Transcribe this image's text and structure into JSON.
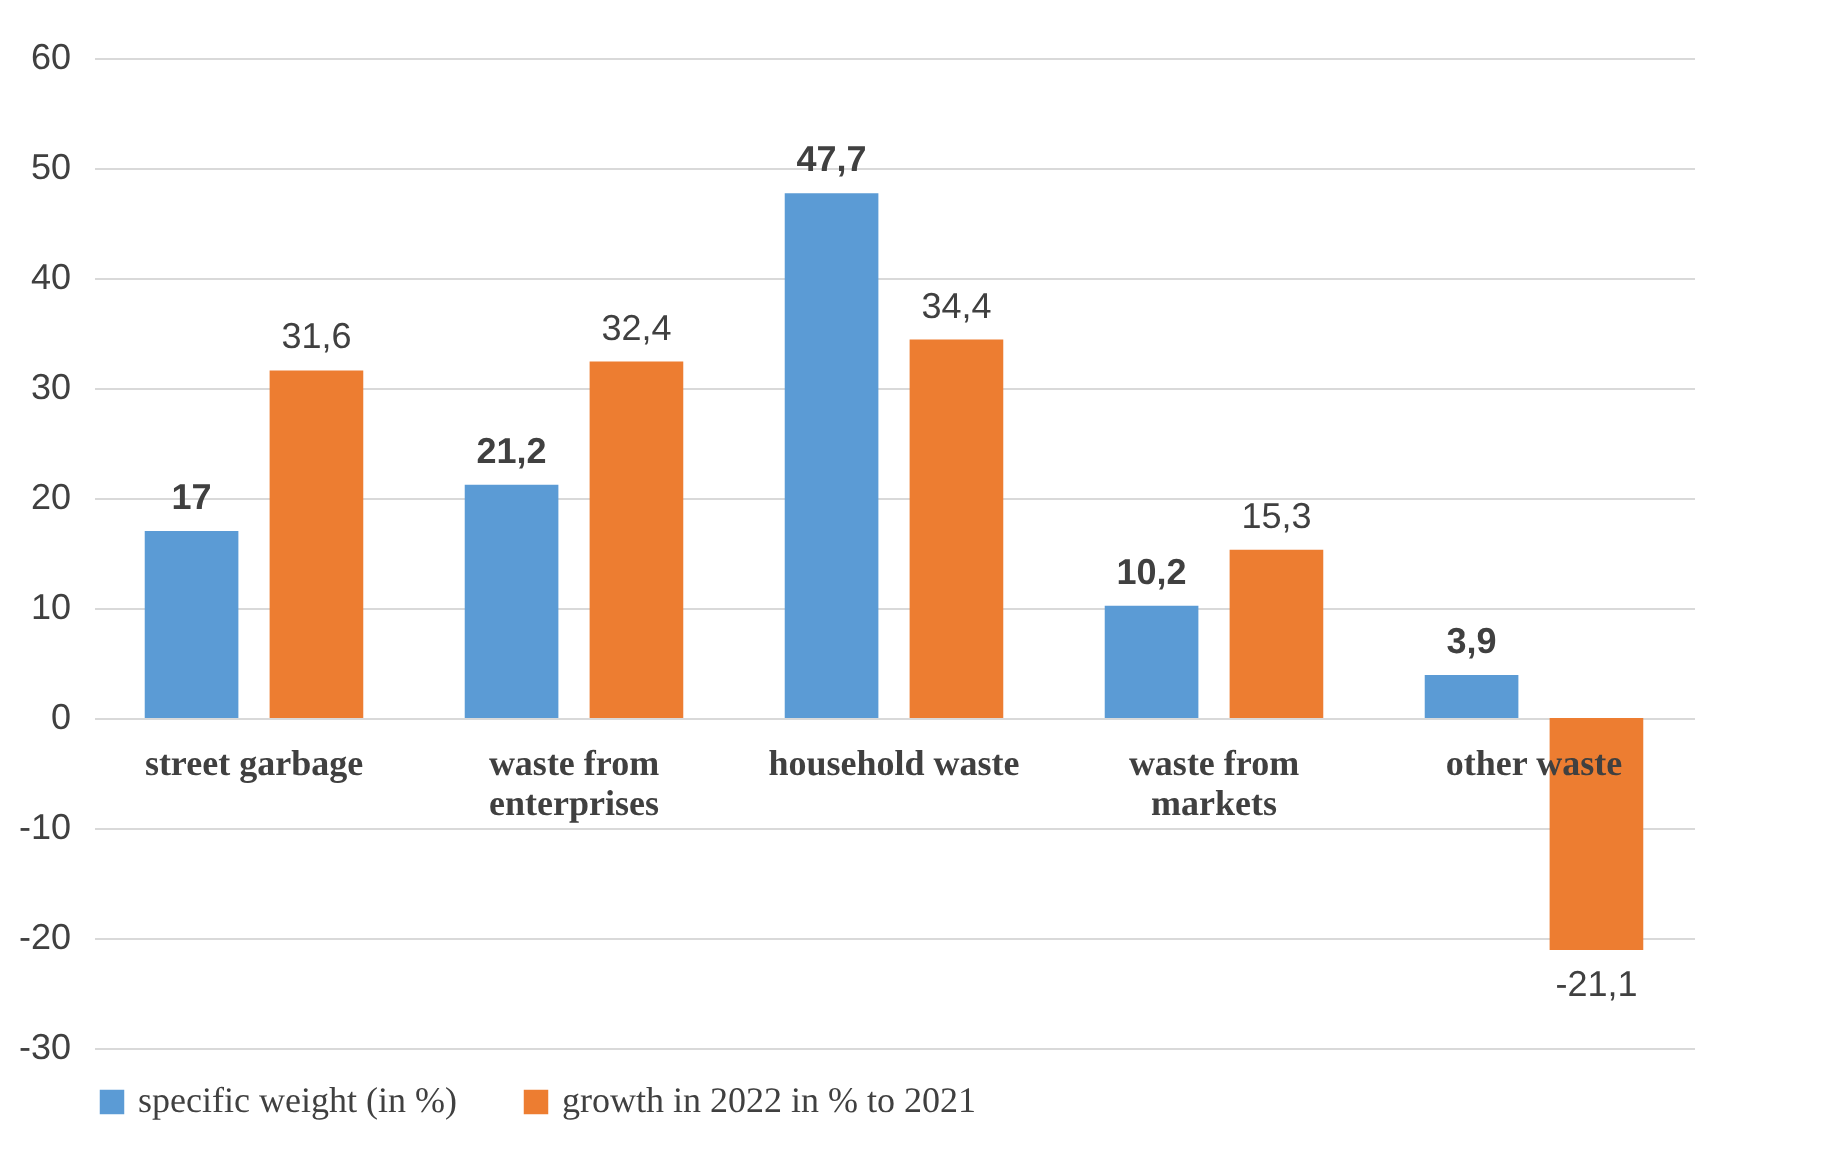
{
  "chart_data": {
    "type": "bar",
    "categories": [
      "street garbage",
      "waste from enterprises",
      "household waste",
      "waste from markets",
      "other waste"
    ],
    "series": [
      {
        "name": "specific weight (in %)",
        "color": "#5b9bd5",
        "values": [
          17,
          21.2,
          47.7,
          10.2,
          3.9
        ],
        "value_labels": [
          "17",
          "21,2",
          "47,7",
          "10,2",
          "3,9"
        ]
      },
      {
        "name": "growth in 2022 in % to 2021",
        "color": "#ed7d31",
        "values": [
          31.6,
          32.4,
          34.4,
          15.3,
          -21.1
        ],
        "value_labels": [
          "31,6",
          "32,4",
          "34,4",
          "15,3",
          "-21,1"
        ]
      }
    ],
    "ylim": [
      -30,
      60
    ],
    "yticks": [
      -30,
      -20,
      -10,
      0,
      10,
      20,
      30,
      40,
      50,
      60
    ],
    "grid": "y",
    "legend": "bottom"
  }
}
